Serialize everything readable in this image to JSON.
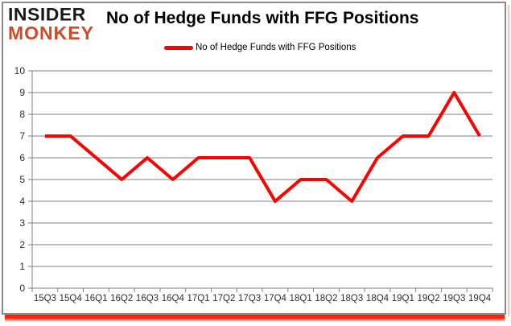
{
  "branding": {
    "logo_line1": "INSIDER",
    "logo_line2": "MONKEY",
    "logo_red": "#cf4a28"
  },
  "header": {
    "title": "No of Hedge Funds with FFG Positions"
  },
  "legend": {
    "label": "No of Hedge Funds with FFG Positions"
  },
  "chart_data": {
    "type": "line",
    "title": "No of Hedge Funds with FFG Positions",
    "categories": [
      "15Q3",
      "15Q4",
      "16Q1",
      "16Q2",
      "16Q3",
      "16Q4",
      "17Q1",
      "17Q2",
      "17Q3",
      "17Q4",
      "18Q1",
      "18Q2",
      "18Q3",
      "18Q4",
      "19Q1",
      "19Q2",
      "19Q3",
      "19Q4"
    ],
    "series": [
      {
        "name": "No of Hedge Funds with FFG Positions",
        "color": "#ff0000",
        "values": [
          7,
          7,
          6,
          5,
          6,
          5,
          6,
          6,
          6,
          4,
          5,
          5,
          4,
          6,
          7,
          7,
          9,
          7
        ]
      }
    ],
    "ylim": [
      0,
      10
    ],
    "yticks": [
      0,
      1,
      2,
      3,
      4,
      5,
      6,
      7,
      8,
      9,
      10
    ],
    "xlabel": "",
    "ylabel": "",
    "grid": "horizontal",
    "legend_position": "top-center"
  },
  "colors": {
    "line": "#ff0000",
    "grid": "#808080",
    "axis": "#808080",
    "tick_label": "#2e2e2e",
    "title": "#000000",
    "frame_border": "#8c8c8c",
    "accent_red": "#ff0000"
  }
}
